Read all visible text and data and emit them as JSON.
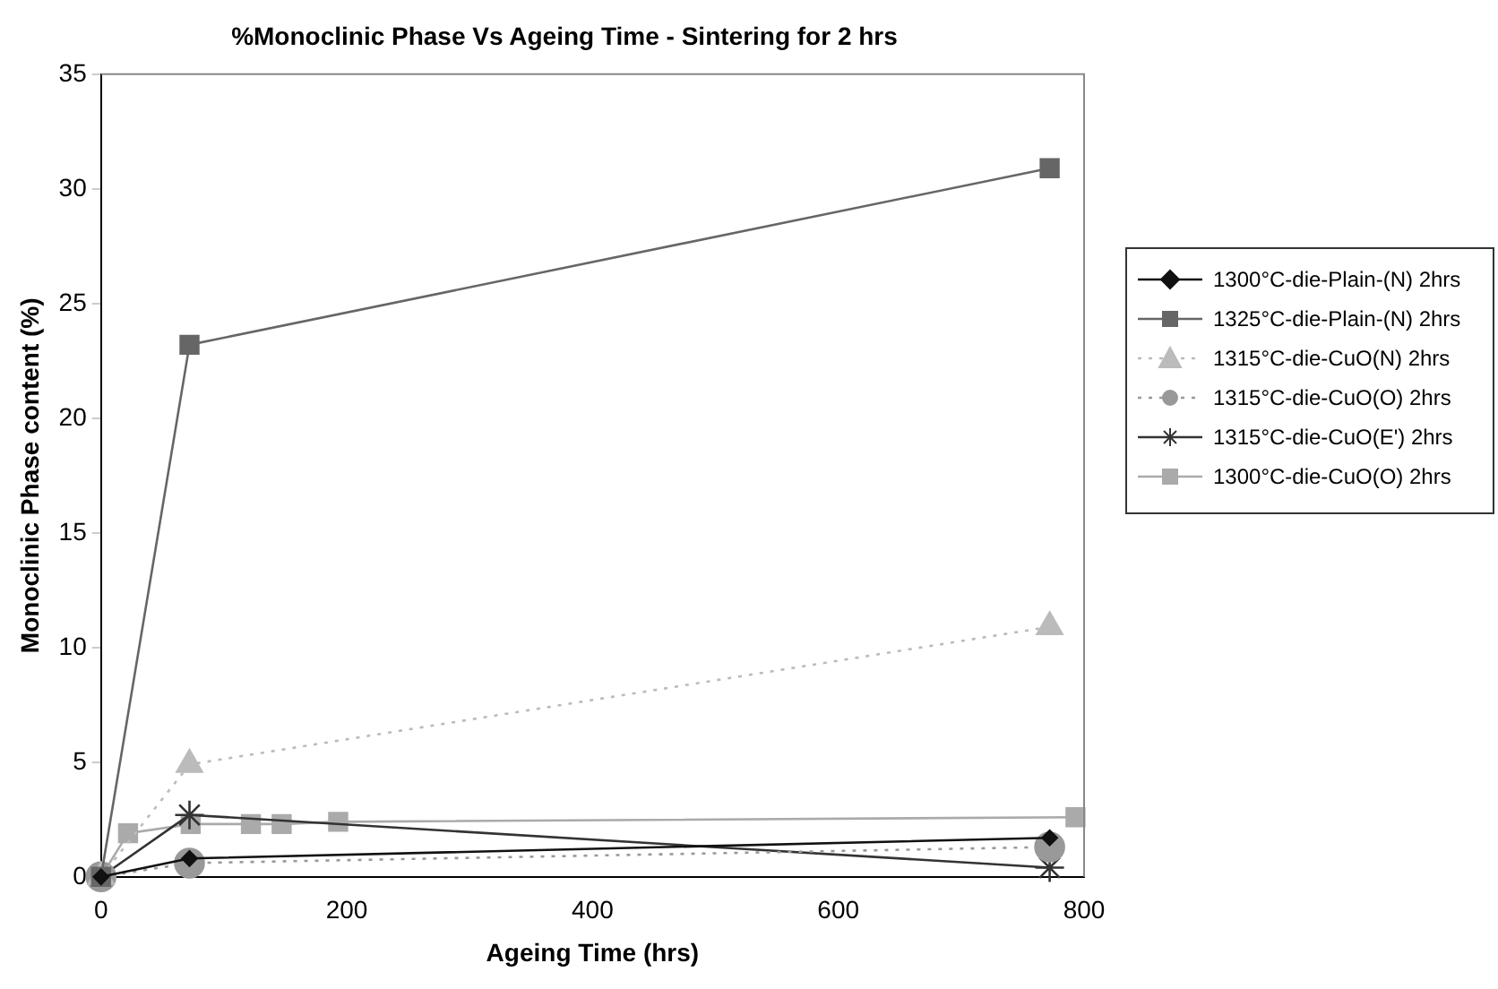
{
  "chart_data": {
    "type": "line",
    "title": "%Monoclinic Phase Vs Ageing Time - Sintering for 2 hrs",
    "xlabel": "Ageing Time (hrs)",
    "ylabel": "Monoclinic Phase content (%)",
    "xlim": [
      0,
      800
    ],
    "xticks": [
      0,
      200,
      400,
      600,
      800
    ],
    "ylim": [
      0,
      35
    ],
    "yticks": [
      0,
      5,
      10,
      15,
      20,
      25,
      30,
      35
    ],
    "grid": false,
    "legend": "right",
    "series": [
      {
        "name": "1300°C-die-Plain-(N) 2hrs",
        "color": "#111111",
        "marker": "diamond",
        "line_style": "solid",
        "x": [
          0,
          72,
          772
        ],
        "values": [
          0,
          0.8,
          1.7
        ]
      },
      {
        "name": "1325°C-die-Plain-(N) 2hrs",
        "color": "#666666",
        "marker": "square",
        "line_style": "solid",
        "x": [
          0,
          72,
          772
        ],
        "values": [
          0,
          23.2,
          30.9
        ]
      },
      {
        "name": "1315°C-die-CuO(N) 2hrs",
        "color": "#bbbbbb",
        "marker": "triangle",
        "line_style": "dotted",
        "x": [
          0,
          72,
          772
        ],
        "values": [
          0,
          4.9,
          10.9
        ]
      },
      {
        "name": "1315°C-die-CuO(O) 2hrs",
        "color": "#999999",
        "marker": "circle",
        "line_style": "dotted",
        "x": [
          0,
          72,
          772
        ],
        "values": [
          0,
          0.6,
          1.3
        ]
      },
      {
        "name": "1315°C-die-CuO(E') 2hrs",
        "color": "#333333",
        "marker": "cross",
        "line_style": "solid",
        "x": [
          0,
          72,
          772
        ],
        "values": [
          0,
          2.7,
          0.4
        ]
      },
      {
        "name": "1300°C-die-CuO(O) 2hrs",
        "color": "#aaaaaa",
        "marker": "square",
        "line_style": "solid",
        "x": [
          0,
          22,
          73,
          122,
          147,
          193,
          793
        ],
        "values": [
          0,
          1.9,
          2.3,
          2.3,
          2.3,
          2.4,
          2.6
        ]
      }
    ]
  }
}
